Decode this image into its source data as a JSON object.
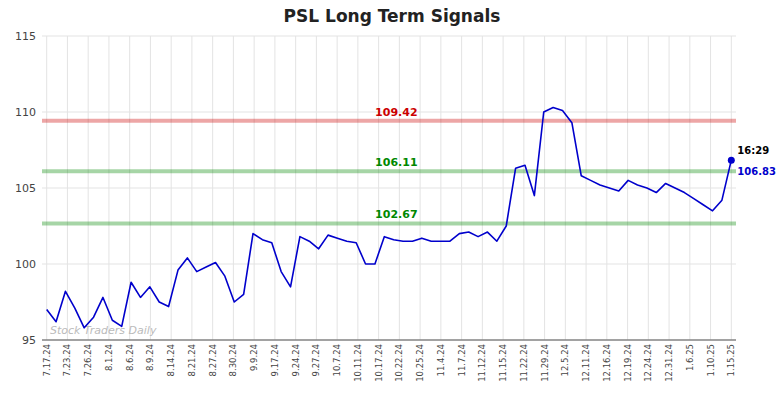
{
  "chart_data": {
    "type": "line",
    "title": "PSL Long Term Signals",
    "color": "#0000cc",
    "grid": true,
    "x": [
      0,
      1,
      2,
      3,
      4,
      5,
      6,
      7,
      8,
      9,
      10,
      11,
      12,
      13,
      14,
      15,
      16,
      17,
      18,
      19,
      20,
      21,
      22,
      23,
      24,
      25,
      26,
      27,
      28,
      29,
      30,
      31,
      32,
      33,
      34,
      35,
      36,
      37,
      38,
      39,
      40,
      41,
      42,
      43,
      44,
      45,
      46,
      47,
      48,
      49,
      50,
      51,
      52,
      53,
      54,
      55,
      56,
      57,
      58,
      59,
      60,
      61,
      62,
      63,
      64,
      65,
      66,
      67,
      68,
      69,
      70,
      71,
      72,
      73
    ],
    "values": [
      97.0,
      96.2,
      98.2,
      97.1,
      95.8,
      96.5,
      97.8,
      96.3,
      95.9,
      98.8,
      97.8,
      98.5,
      97.5,
      97.2,
      99.6,
      100.4,
      99.5,
      99.8,
      100.1,
      99.2,
      97.5,
      98.0,
      102.0,
      101.6,
      101.4,
      99.5,
      98.5,
      101.8,
      101.5,
      101.0,
      101.9,
      101.7,
      101.5,
      101.4,
      100.0,
      100.0,
      101.8,
      101.6,
      101.5,
      101.5,
      101.7,
      101.5,
      101.5,
      101.5,
      102.0,
      102.1,
      101.8,
      102.1,
      101.5,
      102.5,
      106.3,
      106.5,
      104.5,
      110.0,
      110.3,
      110.1,
      109.3,
      105.8,
      105.5,
      105.2,
      105.0,
      104.8,
      105.5,
      105.2,
      105.0,
      104.7,
      105.3,
      105.0,
      104.7,
      104.3,
      103.9,
      103.5,
      104.2,
      106.83
    ],
    "xlim": [
      -0.5,
      73.5
    ],
    "xticks": [
      {
        "value": 0,
        "label": "7.17.24"
      },
      {
        "value": 2.2121212121,
        "label": "7.23.24"
      },
      {
        "value": 4.4242424242,
        "label": "7.26.24"
      },
      {
        "value": 6.6363636364,
        "label": "8.1.24"
      },
      {
        "value": 8.8484848485,
        "label": "8.6.24"
      },
      {
        "value": 11.0606060606,
        "label": "8.9.24"
      },
      {
        "value": 13.2727272727,
        "label": "8.14.24"
      },
      {
        "value": 15.4848484848,
        "label": "8.21.24"
      },
      {
        "value": 17.696969697,
        "label": "8.27.24"
      },
      {
        "value": 19.9090909091,
        "label": "8.30.24"
      },
      {
        "value": 22.1212121212,
        "label": "9.9.24"
      },
      {
        "value": 24.3333333333,
        "label": "9.17.24"
      },
      {
        "value": 26.5454545455,
        "label": "9.24.24"
      },
      {
        "value": 28.7575757576,
        "label": "9.27.24"
      },
      {
        "value": 30.9696969697,
        "label": "10.7.24"
      },
      {
        "value": 33.1818181818,
        "label": "10.11.24"
      },
      {
        "value": 35.3939393939,
        "label": "10.17.24"
      },
      {
        "value": 37.6060606061,
        "label": "10.22.24"
      },
      {
        "value": 39.8181818182,
        "label": "10.25.24"
      },
      {
        "value": 42.0303030303,
        "label": "11.4.24"
      },
      {
        "value": 44.2424242424,
        "label": "11.7.24"
      },
      {
        "value": 46.4545454545,
        "label": "11.12.24"
      },
      {
        "value": 48.6666666667,
        "label": "11.15.24"
      },
      {
        "value": 50.8787878788,
        "label": "11.22.24"
      },
      {
        "value": 53.0909090909,
        "label": "11.29.24"
      },
      {
        "value": 55.303030303,
        "label": "12.5.24"
      },
      {
        "value": 57.5151515152,
        "label": "12.11.24"
      },
      {
        "value": 59.7272727273,
        "label": "12.16.24"
      },
      {
        "value": 61.9393939394,
        "label": "12.19.24"
      },
      {
        "value": 64.1515151515,
        "label": "12.24.24"
      },
      {
        "value": 66.3636363636,
        "label": "12.31.24"
      },
      {
        "value": 68.5757575758,
        "label": "1.6.25"
      },
      {
        "value": 70.7878787879,
        "label": "1.10.25"
      },
      {
        "value": 73,
        "label": "1.15.25"
      }
    ],
    "ylim": [
      95,
      115
    ],
    "yticks": [
      95,
      100,
      105,
      110,
      115
    ],
    "hlines": [
      {
        "value": 109.42,
        "label": "109.42",
        "color": "#cc0000"
      },
      {
        "value": 106.11,
        "label": "106.11",
        "color": "#008800"
      },
      {
        "value": 102.67,
        "label": "102.67",
        "color": "#008800"
      }
    ],
    "last_point_labels": [
      "16:29",
      "106.83"
    ],
    "watermark": "Stock Traders Daily"
  }
}
